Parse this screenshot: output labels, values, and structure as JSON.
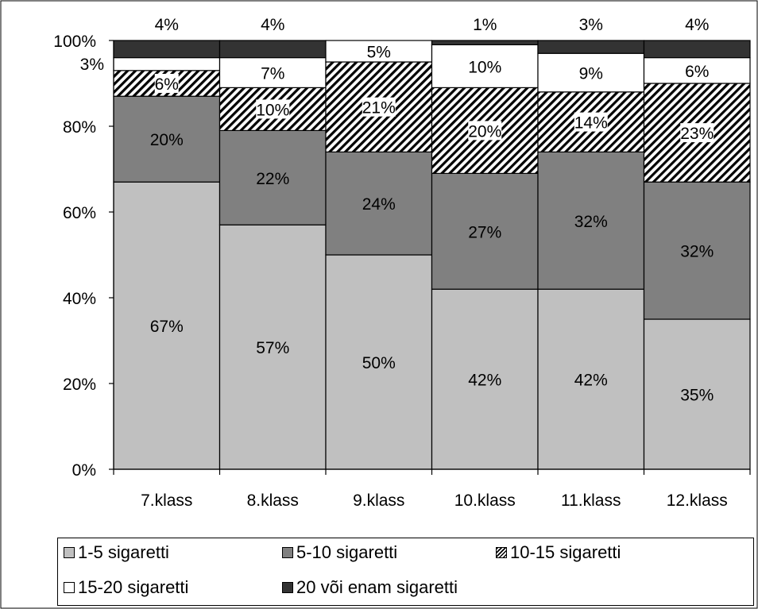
{
  "chart_data": {
    "type": "bar",
    "stacked": true,
    "percent": true,
    "categories": [
      "7.klass",
      "8.klass",
      "9.klass",
      "10.klass",
      "11.klass",
      "12.klass"
    ],
    "series": [
      {
        "name": "1-5 sigaretti",
        "values": [
          67,
          57,
          50,
          42,
          42,
          35
        ],
        "labels": [
          "67%",
          "57%",
          "50%",
          "42%",
          "42%",
          "35%"
        ],
        "fill": "#c0c0c0",
        "pattern": "solid"
      },
      {
        "name": "5-10 sigaretti",
        "values": [
          20,
          22,
          24,
          27,
          32,
          32
        ],
        "labels": [
          "20%",
          "22%",
          "24%",
          "27%",
          "32%",
          "32%"
        ],
        "fill": "#808080",
        "pattern": "solid"
      },
      {
        "name": "10-15 sigaretti",
        "values": [
          6,
          10,
          21,
          20,
          14,
          23
        ],
        "labels": [
          "6%",
          "10%",
          "21%",
          "20%",
          "14%",
          "23%"
        ],
        "fill": "#ffffff",
        "pattern": "hatch"
      },
      {
        "name": "15-20 sigaretti",
        "values": [
          3,
          7,
          5,
          10,
          9,
          6
        ],
        "labels": [
          "3%",
          "7%",
          "5%",
          "10%",
          "9%",
          "6%"
        ],
        "fill": "#ffffff",
        "pattern": "solid"
      },
      {
        "name": "20 või enam sigaretti",
        "values": [
          4,
          4,
          0,
          1,
          3,
          4
        ],
        "labels": [
          "4%",
          "4%",
          "",
          "1%",
          "3%",
          "4%"
        ],
        "fill": "#333333",
        "pattern": "solid"
      }
    ],
    "y_ticks": [
      "0%",
      "20%",
      "40%",
      "60%",
      "80%",
      "100%"
    ],
    "ylim": [
      0,
      100
    ],
    "title": "",
    "xlabel": "",
    "ylabel": "",
    "grid": false,
    "legend_position": "bottom"
  }
}
